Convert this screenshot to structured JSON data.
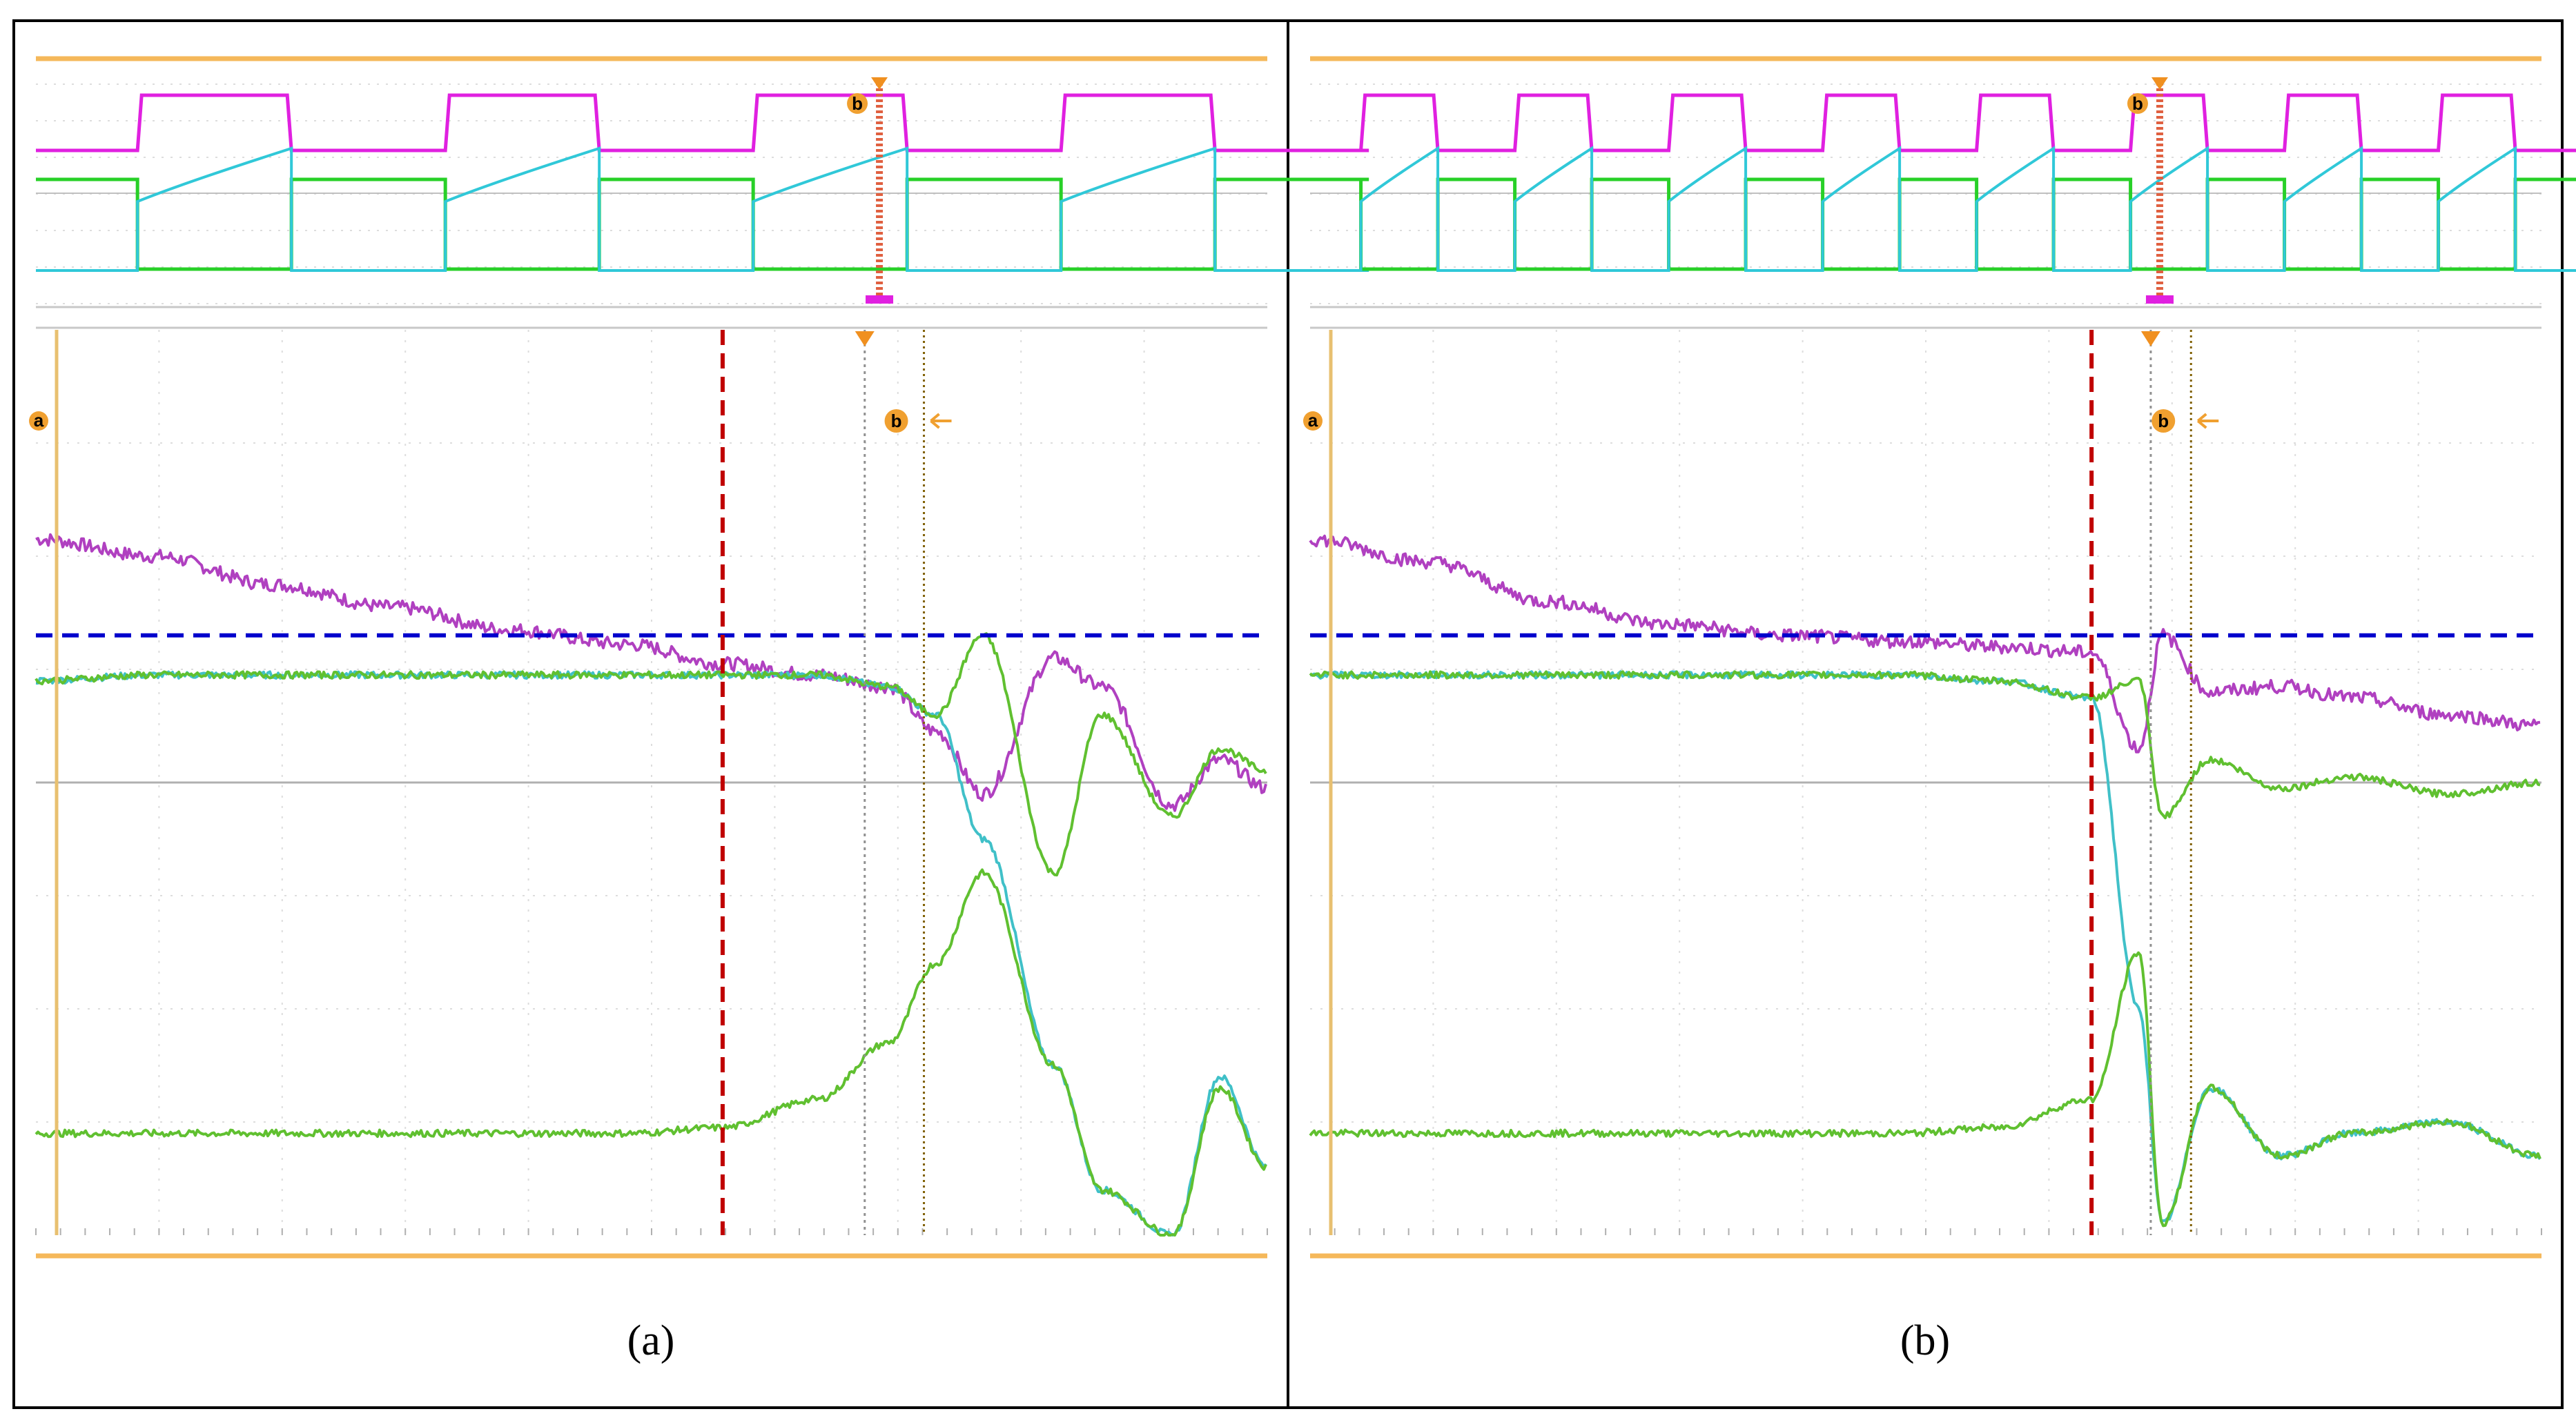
{
  "chart_data": [
    {
      "type": "line",
      "caption": "(a)",
      "marker_a": "a",
      "marker_b": "b",
      "overview": {
        "pulse_periods": 4,
        "series": [
          {
            "color": "#e020e0",
            "role": "gate pulse"
          },
          {
            "color": "#30c8d8",
            "role": "sawtooth"
          },
          {
            "color": "#28d028",
            "role": "step"
          }
        ]
      },
      "x": [
        0,
        0.5,
        1,
        1.5,
        2,
        2.5,
        2.9,
        3.3,
        3.6,
        3.8,
        4.0,
        4.3,
        4.5,
        4.8,
        5.0,
        5.2
      ],
      "ylim": [
        -4,
        4
      ],
      "series": [
        {
          "color": "#b040c0",
          "values": [
            2.15,
            2.0,
            1.75,
            1.55,
            1.35,
            1.22,
            1.05,
            0.95,
            0.85,
            0.45,
            -0.1,
            1.1,
            0.85,
            -0.2,
            0.2,
            -0.05
          ]
        },
        {
          "color": "#40c0c8",
          "values": [
            0.9,
            0.95,
            0.95,
            0.95,
            0.95,
            0.95,
            0.95,
            0.95,
            0.85,
            0.6,
            -0.5,
            -2.5,
            -3.6,
            -4.0,
            -2.6,
            -3.4
          ]
        },
        {
          "color": "#60c030",
          "values": [
            -3.1,
            -3.1,
            -3.1,
            -3.1,
            -3.1,
            -3.1,
            -3.05,
            -2.8,
            -2.3,
            -1.6,
            -0.8,
            -2.5,
            -3.6,
            -4.0,
            -2.7,
            -3.4
          ]
        },
        {
          "color": "#60c030",
          "values": [
            0.9,
            0.95,
            0.95,
            0.95,
            0.95,
            0.95,
            0.95,
            0.95,
            0.85,
            0.6,
            1.3,
            -0.8,
            0.6,
            -0.3,
            0.3,
            0.1
          ]
        }
      ],
      "ref_level": 1.3,
      "ref_level_color": "#0000cc",
      "onset_color": "#c00000",
      "cursor_color": "#806000"
    },
    {
      "type": "line",
      "caption": "(b)",
      "marker_a": "a",
      "marker_b": "b",
      "overview": {
        "pulse_periods": 8,
        "series": [
          {
            "color": "#e020e0",
            "role": "gate pulse"
          },
          {
            "color": "#30c8d8",
            "role": "sawtooth"
          },
          {
            "color": "#28d028",
            "role": "step"
          }
        ]
      },
      "x": [
        0,
        0.5,
        1,
        1.5,
        2,
        2.5,
        2.9,
        3.3,
        3.5,
        3.6,
        3.8,
        4.1,
        4.4,
        4.8,
        5.2
      ],
      "ylim": [
        -4,
        4
      ],
      "series": [
        {
          "color": "#b040c0",
          "values": [
            2.15,
            1.95,
            1.6,
            1.4,
            1.3,
            1.25,
            1.2,
            1.15,
            0.3,
            1.3,
            0.8,
            0.85,
            0.75,
            0.6,
            0.5
          ]
        },
        {
          "color": "#40c0c8",
          "values": [
            0.95,
            0.95,
            0.95,
            0.95,
            0.95,
            0.95,
            0.9,
            0.75,
            -2.0,
            -3.9,
            -2.7,
            -3.3,
            -3.1,
            -3.0,
            -3.3
          ]
        },
        {
          "color": "#60c030",
          "values": [
            -3.1,
            -3.1,
            -3.1,
            -3.1,
            -3.1,
            -3.1,
            -3.05,
            -2.8,
            -1.5,
            -3.9,
            -2.7,
            -3.3,
            -3.1,
            -3.0,
            -3.3
          ]
        },
        {
          "color": "#60c030",
          "values": [
            0.95,
            0.95,
            0.95,
            0.95,
            0.95,
            0.95,
            0.9,
            0.75,
            0.9,
            -0.3,
            0.2,
            -0.05,
            0.05,
            -0.1,
            0.0
          ]
        }
      ],
      "ref_level": 1.3,
      "ref_level_color": "#0000cc",
      "onset_color": "#c00000",
      "cursor_color": "#806000"
    }
  ]
}
